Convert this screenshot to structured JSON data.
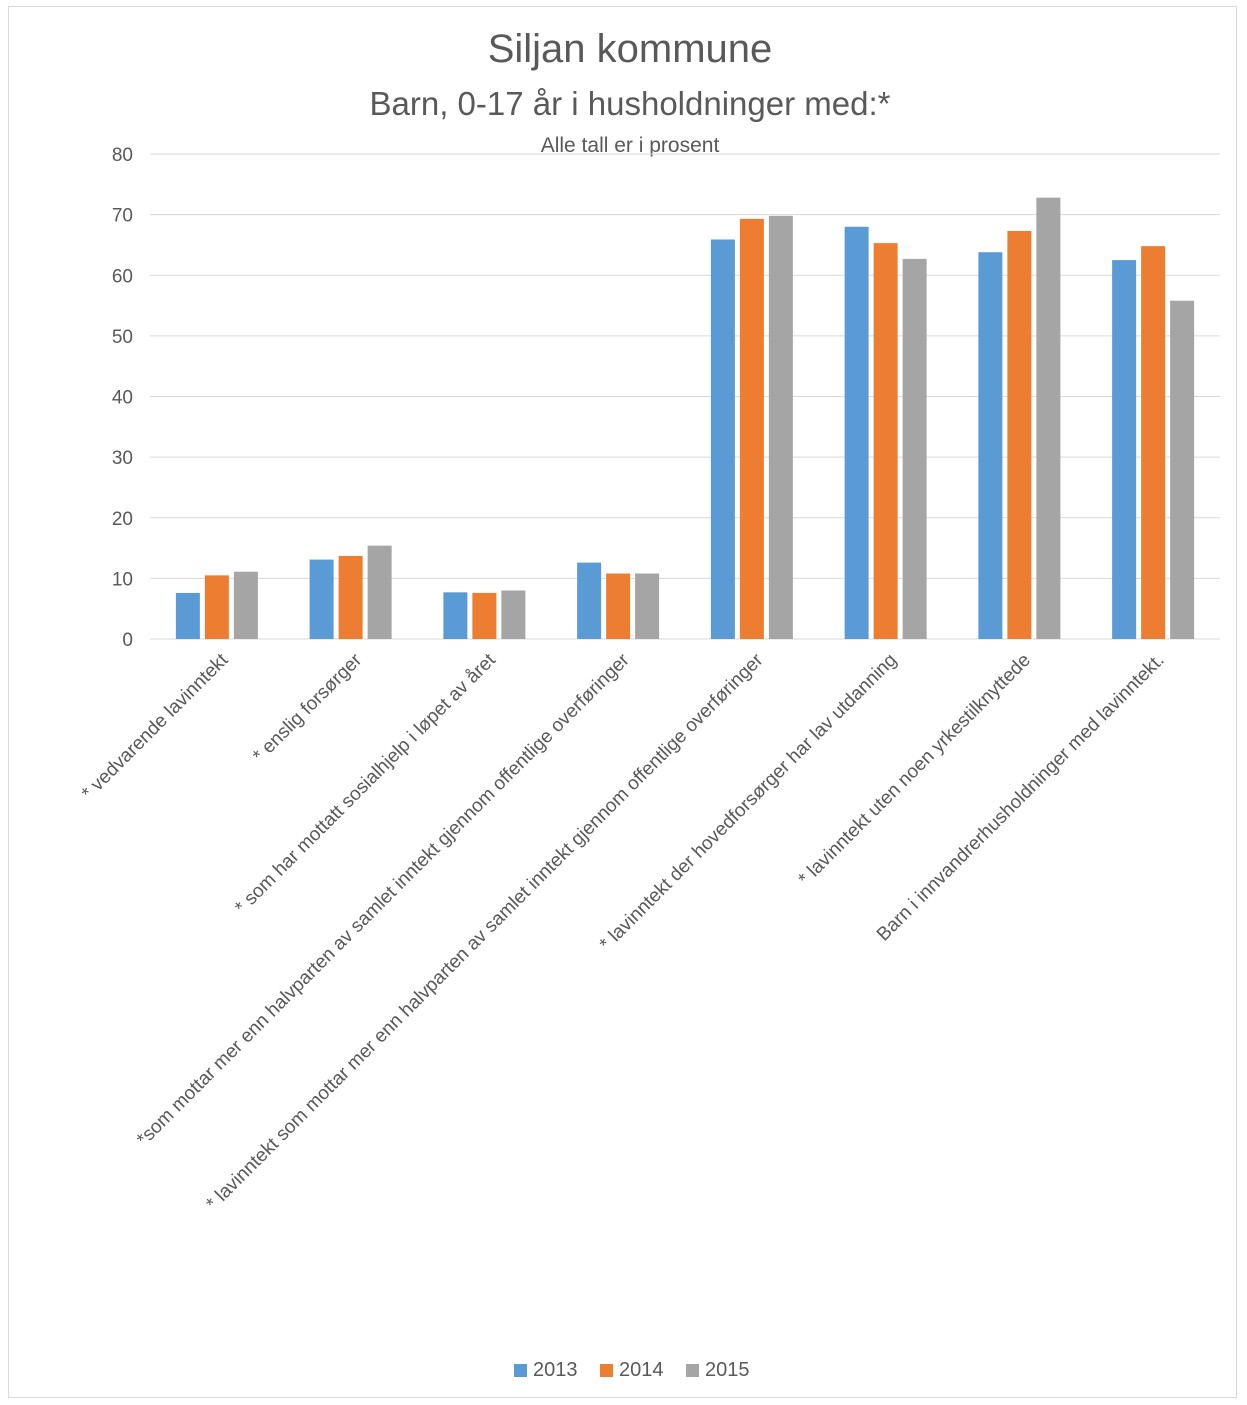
{
  "chart_data": {
    "type": "bar",
    "title": "Siljan kommune",
    "subtitle": "Barn, 0-17 år i husholdninger med:*",
    "note": "Alle tall er i prosent",
    "categories": [
      "*  vedvarende lavinntekt",
      "* enslig forsørger",
      "* som har mottatt sosialhjelp i løpet av året",
      "*som mottar mer enn halvparten av samlet inntekt gjennom offentlige overføringer",
      "* lavinntekt som mottar mer enn halvparten av samlet inntekt gjennom offentlige overføringer",
      "*  lavinntekt der hovedforsørger har lav utdanning",
      "* lavinntekt uten noen yrkestilknyttede",
      "Barn i innvandrerhusholdninger med lavinntekt."
    ],
    "series": [
      {
        "name": "2013",
        "color": "#5b9bd5",
        "values": [
          7.6,
          13.1,
          7.7,
          12.6,
          65.9,
          68.0,
          63.8,
          62.5
        ]
      },
      {
        "name": "2014",
        "color": "#ed7d31",
        "values": [
          10.5,
          13.7,
          7.6,
          10.8,
          69.3,
          65.3,
          67.3,
          64.8
        ]
      },
      {
        "name": "2015",
        "color": "#a5a5a5",
        "values": [
          11.1,
          15.4,
          8.0,
          10.8,
          69.8,
          62.7,
          72.8,
          55.8
        ]
      }
    ],
    "ylim": [
      0,
      80
    ],
    "yticks": [
      0,
      10,
      20,
      30,
      40,
      50,
      60,
      70,
      80
    ],
    "grid": true,
    "legend": "bottom"
  }
}
